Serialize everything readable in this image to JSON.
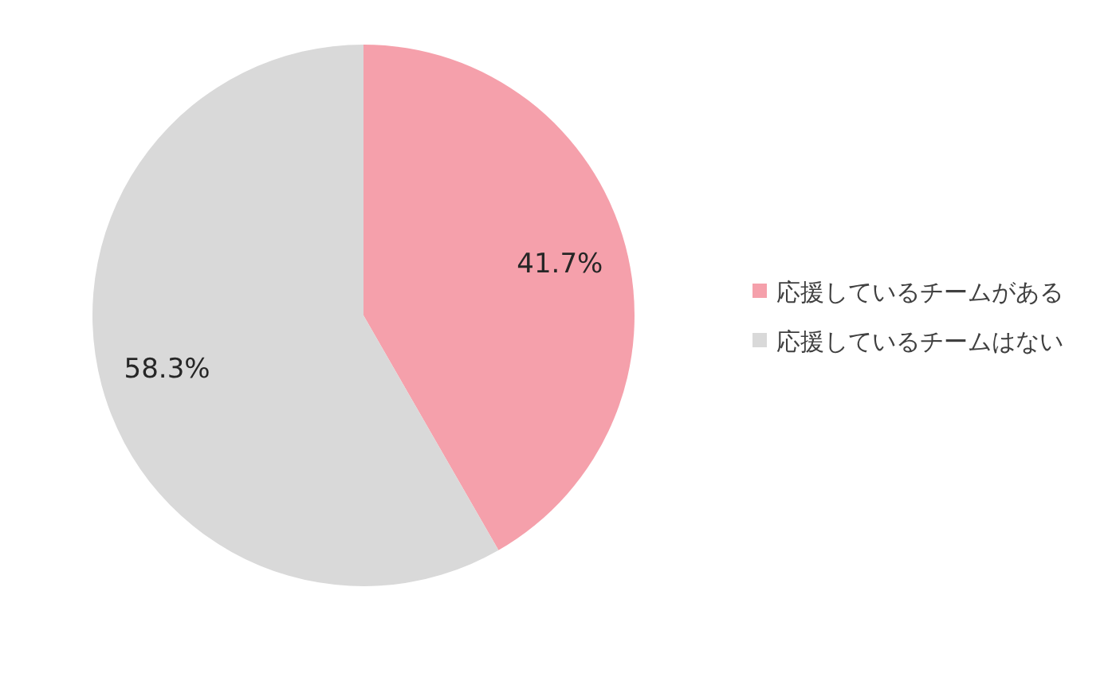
{
  "chart_data": {
    "type": "pie",
    "categories": [
      "応援しているチームがある",
      "応援しているチームはない"
    ],
    "values": [
      41.7,
      58.3
    ],
    "colors": [
      "#f5a0ab",
      "#d9d9d9"
    ],
    "value_labels": [
      "41.7%",
      "58.3%"
    ],
    "legend": "right"
  }
}
